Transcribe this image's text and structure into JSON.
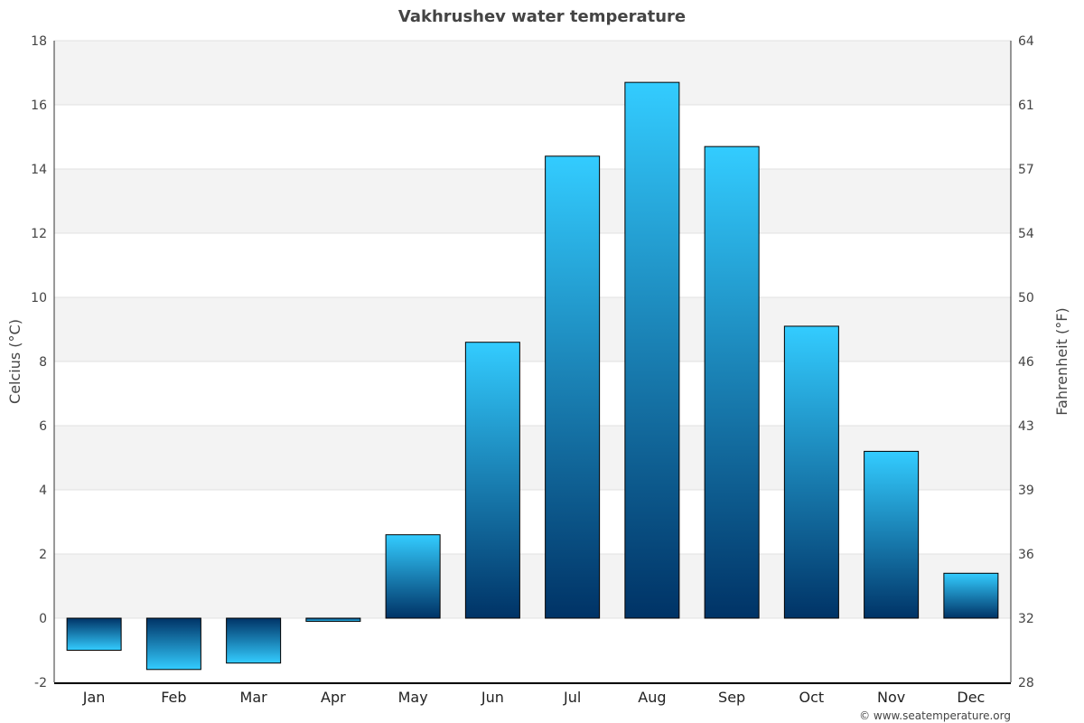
{
  "chart_data": {
    "type": "bar",
    "title": "Vakhrushev water temperature",
    "ylabel": "Celcius (°C)",
    "ylabel_right": "Fahrenheit (°F)",
    "categories": [
      "Jan",
      "Feb",
      "Mar",
      "Apr",
      "May",
      "Jun",
      "Jul",
      "Aug",
      "Sep",
      "Oct",
      "Nov",
      "Dec"
    ],
    "values": [
      -1.0,
      -1.6,
      -1.4,
      -0.1,
      2.6,
      8.6,
      14.4,
      16.7,
      14.7,
      9.1,
      5.2,
      1.4
    ],
    "ylim": [
      -2,
      18
    ],
    "yticks": [
      -2,
      0,
      2,
      4,
      6,
      8,
      10,
      12,
      14,
      16,
      18
    ],
    "yticks_right": [
      "28",
      "32",
      "36",
      "39",
      "43",
      "46",
      "50",
      "54",
      "57",
      "61",
      "64"
    ],
    "grid": true,
    "legend": "none",
    "colors": {
      "bar_light": "#33ccff",
      "bar_dark": "#003366",
      "band": "#f3f3f3"
    },
    "credit": "© www.seatemperature.org"
  }
}
